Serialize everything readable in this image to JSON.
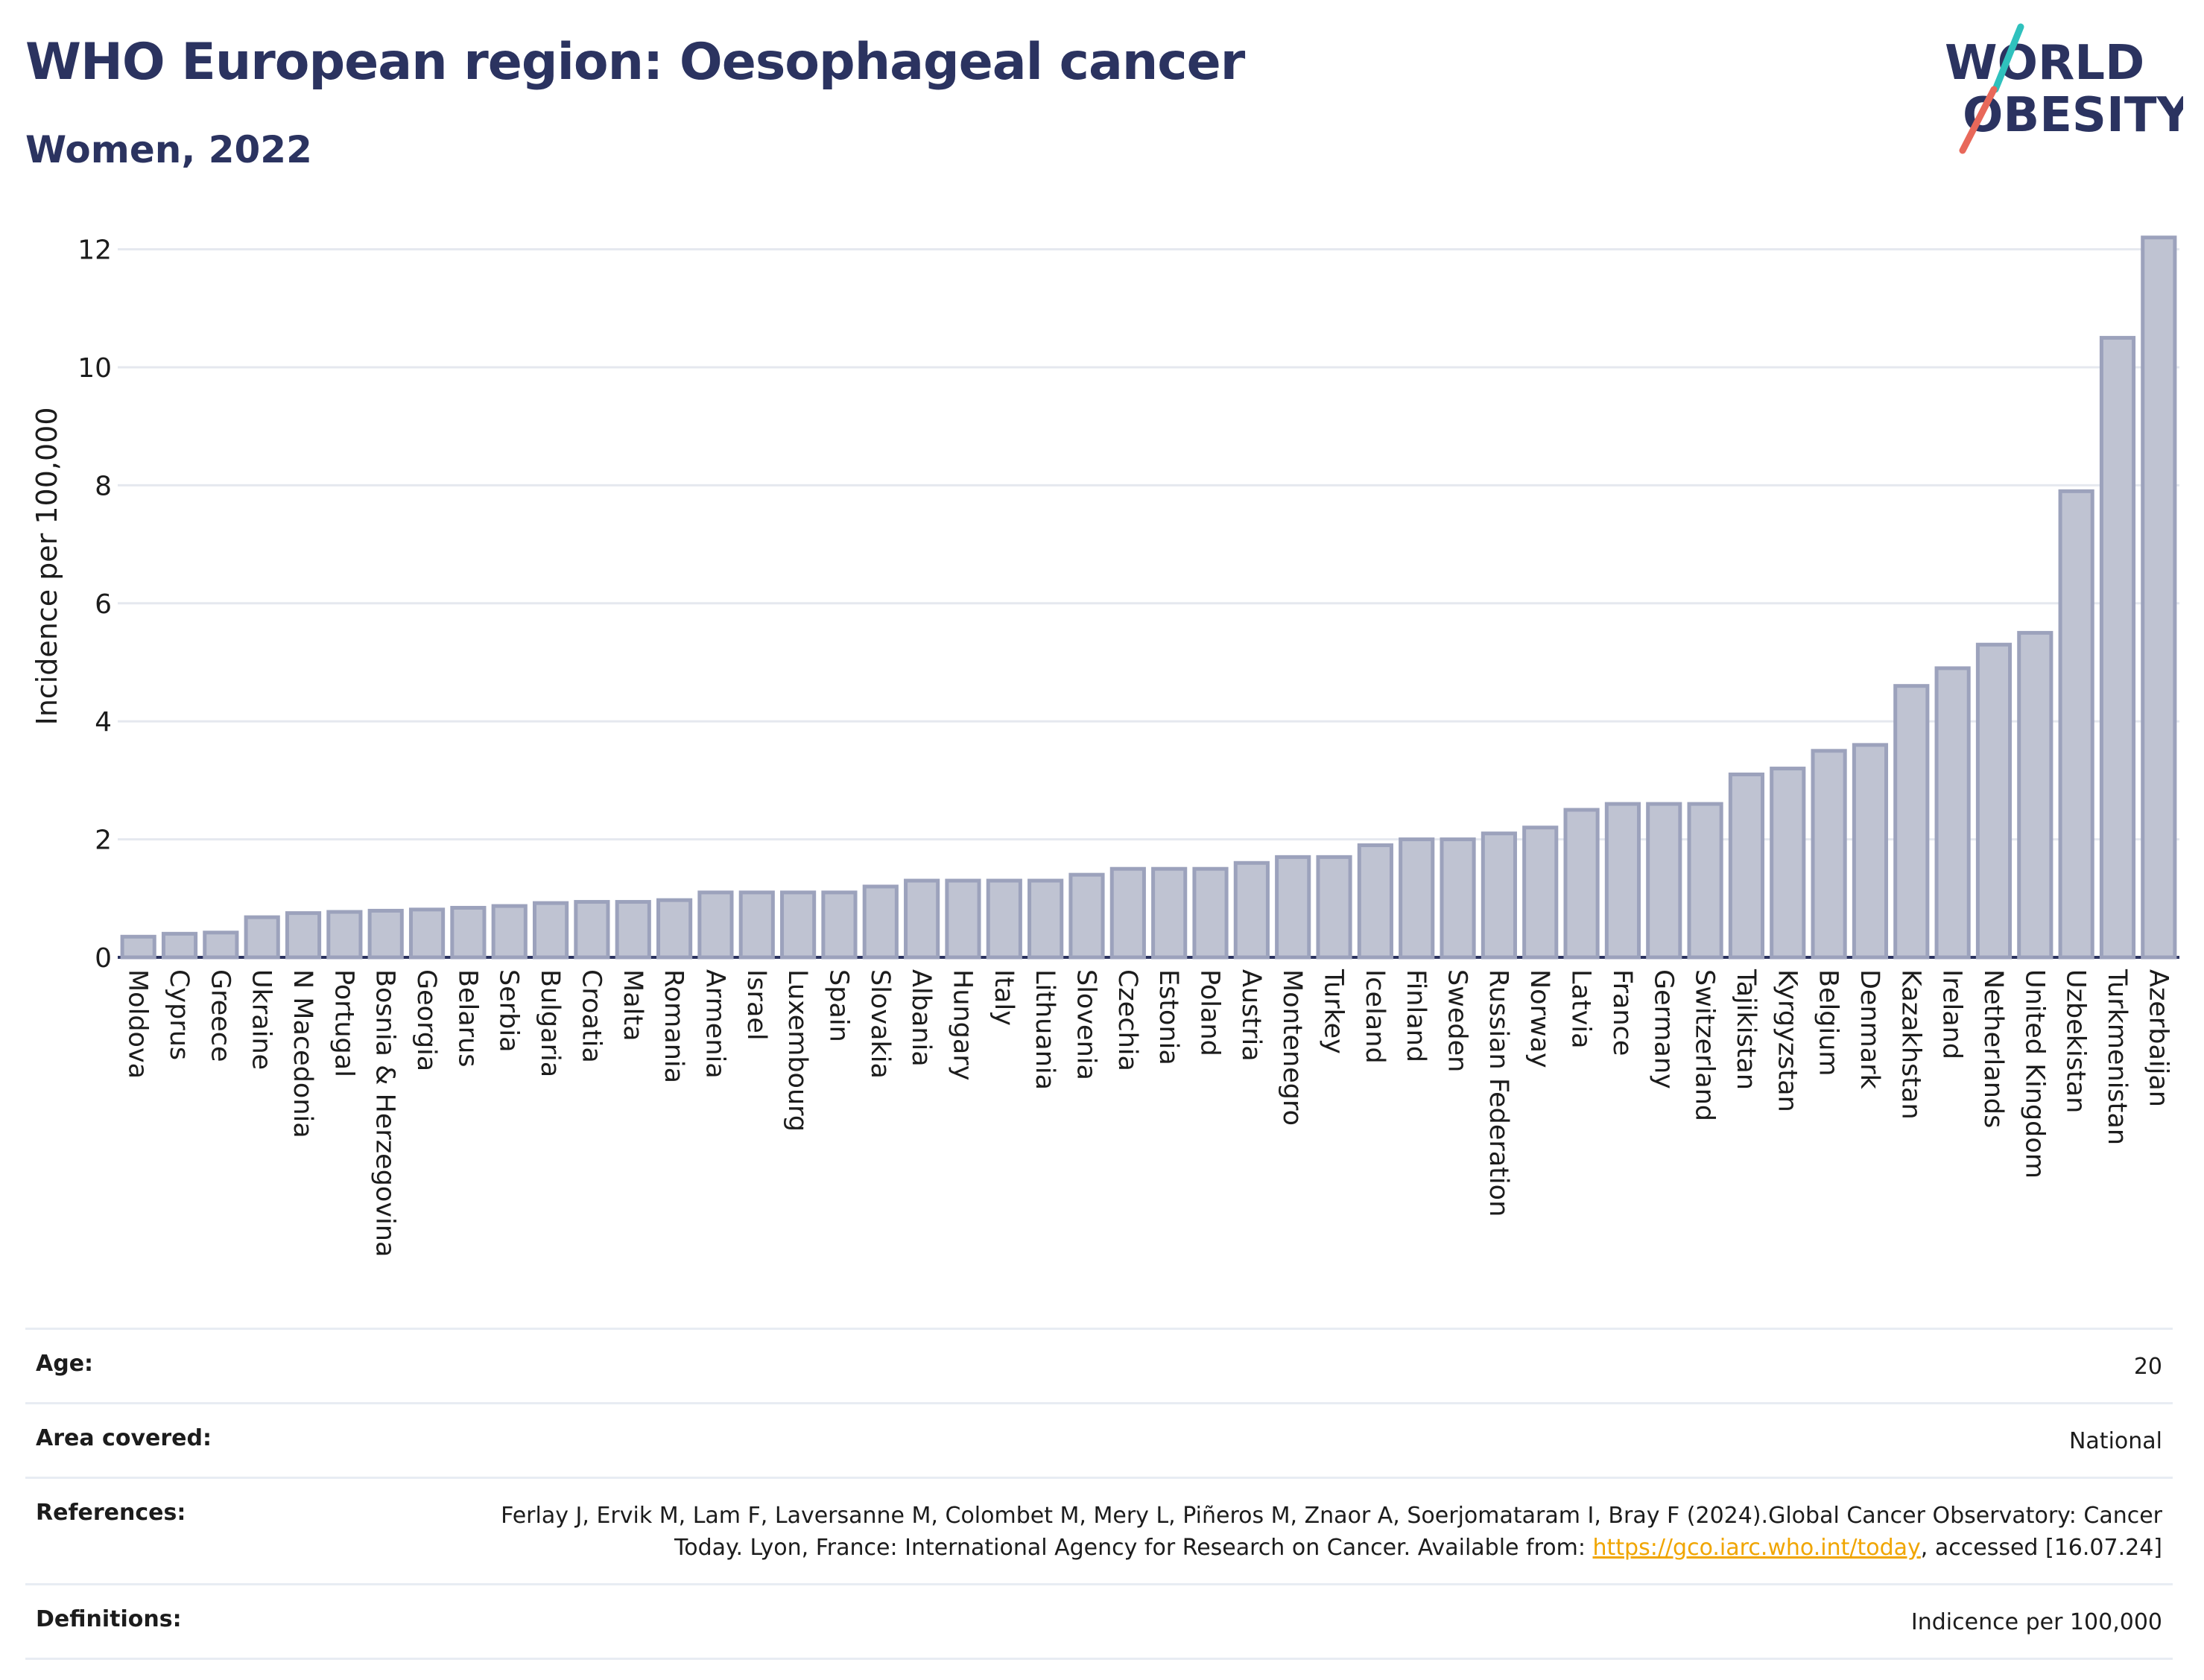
{
  "header": {
    "title": "WHO European region: Oesophageal cancer",
    "subtitle": "Women, 2022"
  },
  "logo": {
    "line1": "WORLD",
    "line2": "OBESITY",
    "text_color": "#2b3360",
    "accent_teal": "#2fc1bd",
    "accent_coral": "#e8685a"
  },
  "colors": {
    "bar_fill": "#bfc3d2",
    "bar_stroke": "#9ca2bc",
    "axis": "#2b3360",
    "grid": "#e5e8ef"
  },
  "chart_data": {
    "type": "bar",
    "ylabel": "Incidence per 100,000",
    "xlabel": "",
    "ylim": [
      0,
      12.5
    ],
    "yticks": [
      0,
      2,
      4,
      6,
      8,
      10,
      12
    ],
    "grid": true,
    "categories": [
      "Moldova",
      "Cyprus",
      "Greece",
      "Ukraine",
      "N Macedonia",
      "Portugal",
      "Bosnia & Herzegovina",
      "Georgia",
      "Belarus",
      "Serbia",
      "Bulgaria",
      "Croatia",
      "Malta",
      "Romania",
      "Armenia",
      "Israel",
      "Luxembourg",
      "Spain",
      "Slovakia",
      "Albania",
      "Hungary",
      "Italy",
      "Lithuania",
      "Slovenia",
      "Czechia",
      "Estonia",
      "Poland",
      "Austria",
      "Montenegro",
      "Turkey",
      "Iceland",
      "Finland",
      "Sweden",
      "Russian Federation",
      "Norway",
      "Latvia",
      "France",
      "Germany",
      "Switzerland",
      "Tajikistan",
      "Kyrgyzstan",
      "Belgium",
      "Denmark",
      "Kazakhstan",
      "Ireland",
      "Netherlands",
      "United Kingdom",
      "Uzbekistan",
      "Turkmenistan",
      "Azerbaijan"
    ],
    "values": [
      0.35,
      0.4,
      0.42,
      0.68,
      0.75,
      0.77,
      0.79,
      0.81,
      0.84,
      0.87,
      0.92,
      0.94,
      0.94,
      0.97,
      1.1,
      1.1,
      1.1,
      1.1,
      1.2,
      1.3,
      1.3,
      1.3,
      1.3,
      1.4,
      1.5,
      1.5,
      1.5,
      1.6,
      1.7,
      1.7,
      1.9,
      2.0,
      2.0,
      2.1,
      2.2,
      2.5,
      2.6,
      2.6,
      2.6,
      3.1,
      3.2,
      3.5,
      3.6,
      4.6,
      4.9,
      5.3,
      5.5,
      7.9,
      10.5,
      12.2
    ]
  },
  "info": {
    "age_label": "Age:",
    "age_value": "20",
    "area_label": "Area covered:",
    "area_value": "National",
    "references_label": "References:",
    "references_text_1": "Ferlay J, Ervik M, Lam F, Laversanne M, Colombet M, Mery L, Piñeros M, Znaor A, Soerjomataram I, Bray F (2024).Global Cancer Observatory: Cancer Today. Lyon, France: International Agency for Research on Cancer. Available from: ",
    "references_link": "https://gco.iarc.who.int/today",
    "references_text_2": ", accessed [16.07.24]",
    "definitions_label": "Definitions:",
    "definitions_value": "Indicence per 100,000"
  }
}
